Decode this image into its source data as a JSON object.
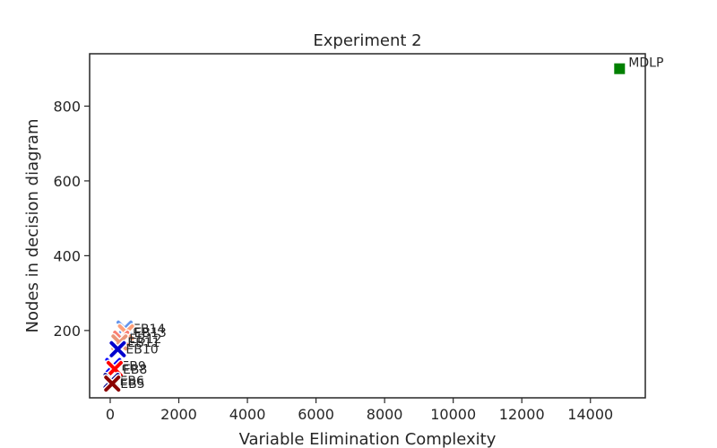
{
  "chart_data": {
    "type": "scatter",
    "title": "Experiment 2",
    "xlabel": "Variable Elimination Complexity",
    "ylabel": "Nodes in decision diagram",
    "xlim": [
      -600,
      15600
    ],
    "ylim": [
      20,
      940
    ],
    "xticks": [
      0,
      2000,
      4000,
      6000,
      8000,
      10000,
      12000,
      14000
    ],
    "yticks": [
      200,
      400,
      600,
      800
    ],
    "grid": false,
    "points": [
      {
        "label": "MDLP",
        "x": 14850,
        "y": 900,
        "marker": "square",
        "color": "#008000"
      },
      {
        "label": "EB14",
        "x": 420,
        "y": 205,
        "marker": "x",
        "color": "#6495ed"
      },
      {
        "label": "EB13",
        "x": 460,
        "y": 195,
        "marker": "x",
        "color": "#ffa07a"
      },
      {
        "label": "EB12",
        "x": 320,
        "y": 178,
        "marker": "x",
        "color": "#fa8072"
      },
      {
        "label": "EB11",
        "x": 270,
        "y": 168,
        "marker": "x",
        "color": "#e9967a"
      },
      {
        "label": "EB10",
        "x": 220,
        "y": 150,
        "marker": "x",
        "color": "#0000cd"
      },
      {
        "label": "EB9",
        "x": 90,
        "y": 105,
        "marker": "x",
        "color": "#0000ff"
      },
      {
        "label": "EB8",
        "x": 130,
        "y": 97,
        "marker": "x",
        "color": "#ff0000"
      },
      {
        "label": "EB6",
        "x": 40,
        "y": 65,
        "marker": "x",
        "color": "#00008b"
      },
      {
        "label": "EB5",
        "x": 60,
        "y": 58,
        "marker": "x",
        "color": "#8b0000"
      }
    ]
  }
}
